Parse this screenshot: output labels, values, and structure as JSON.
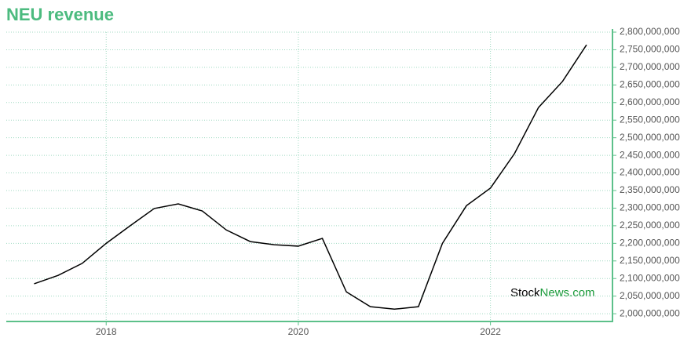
{
  "chart_data": {
    "type": "line",
    "title": "NEU revenue",
    "watermark": [
      "Stock",
      "News",
      ".com"
    ],
    "x": [
      2017.25,
      2017.5,
      2017.75,
      2018.0,
      2018.25,
      2018.5,
      2018.75,
      2019.0,
      2019.25,
      2019.5,
      2019.75,
      2020.0,
      2020.25,
      2020.5,
      2020.75,
      2021.0,
      2021.25,
      2021.5,
      2021.75,
      2022.0,
      2022.25,
      2022.5,
      2022.75,
      2023.0
    ],
    "series": [
      {
        "color": "#000000",
        "values": [
          2085000000,
          2109000000,
          2143000000,
          2200000000,
          2250000000,
          2299000000,
          2312000000,
          2292000000,
          2238000000,
          2205000000,
          2196000000,
          2192000000,
          2214000000,
          2062000000,
          2020000000,
          2013000000,
          2020000000,
          2200000000,
          2307000000,
          2357000000,
          2455000000,
          2586000000,
          2660000000,
          2764000000
        ]
      }
    ],
    "xlim": [
      2016.96,
      2023.27
    ],
    "xticks": [
      2018,
      2020,
      2022
    ],
    "ylim": [
      1978000000,
      2800000000
    ],
    "yticks": [
      {
        "value": 2000000000,
        "label": "2,000,000,000"
      },
      {
        "value": 2050000000,
        "label": "2,050,000,000"
      },
      {
        "value": 2100000000,
        "label": "2,100,000,000"
      },
      {
        "value": 2150000000,
        "label": "2,150,000,000"
      },
      {
        "value": 2200000000,
        "label": "2,200,000,000"
      },
      {
        "value": 2250000000,
        "label": "2,250,000,000"
      },
      {
        "value": 2300000000,
        "label": "2,300,000,000"
      },
      {
        "value": 2350000000,
        "label": "2,350,000,000"
      },
      {
        "value": 2400000000,
        "label": "2,400,000,000"
      },
      {
        "value": 2450000000,
        "label": "2,450,000,000"
      },
      {
        "value": 2500000000,
        "label": "2,500,000,000"
      },
      {
        "value": 2550000000,
        "label": "2,550,000,000"
      },
      {
        "value": 2600000000,
        "label": "2,600,000,000"
      },
      {
        "value": 2650000000,
        "label": "2,650,000,000"
      },
      {
        "value": 2700000000,
        "label": "2,700,000,000"
      },
      {
        "value": 2750000000,
        "label": "2,750,000,000"
      },
      {
        "value": 2800000000,
        "label": "2,800,000,000"
      }
    ],
    "grid": true,
    "y_axis_side": "right"
  }
}
